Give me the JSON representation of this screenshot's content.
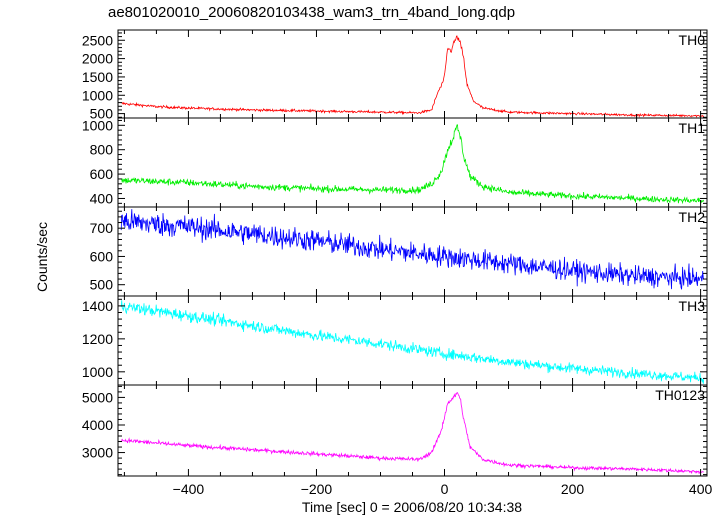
{
  "title": "ae801020010_20060820103438_wam3_trn_4band_long.qdp",
  "chart_data": {
    "type": "line",
    "title": "ae801020010_20060820103438_wam3_trn_4band_long.qdp",
    "xlabel": "Time [sec] 0 = 2006/08/20 10:34:38",
    "ylabel": "Counts/sec",
    "xlim": [
      -510,
      410
    ],
    "x_ticks": [
      -400,
      -200,
      0,
      200,
      400
    ],
    "x_tick_labels": [
      "−400",
      "−200",
      "0",
      "200",
      "400"
    ],
    "grid": false,
    "series": [
      {
        "name": "TH0",
        "color": "#ff0000",
        "ylim": [
          380,
          2780
        ],
        "y_ticks": [
          500,
          1000,
          1500,
          2000,
          2500
        ],
        "y_tick_labels": [
          "500",
          "1000",
          "1500",
          "2000",
          "2500"
        ],
        "noise": 35,
        "points": [
          [
            -505,
            780
          ],
          [
            -450,
            690
          ],
          [
            -400,
            650
          ],
          [
            -300,
            600
          ],
          [
            -200,
            570
          ],
          [
            -100,
            540
          ],
          [
            -40,
            520
          ],
          [
            -20,
            600
          ],
          [
            -10,
            1100
          ],
          [
            -5,
            1250
          ],
          [
            0,
            1500
          ],
          [
            5,
            2300
          ],
          [
            10,
            2200
          ],
          [
            15,
            2450
          ],
          [
            20,
            2600
          ],
          [
            25,
            2400
          ],
          [
            30,
            2000
          ],
          [
            35,
            1300
          ],
          [
            45,
            850
          ],
          [
            60,
            650
          ],
          [
            100,
            540
          ],
          [
            200,
            500
          ],
          [
            300,
            460
          ],
          [
            405,
            440
          ]
        ]
      },
      {
        "name": "TH1",
        "color": "#00ee00",
        "ylim": [
          330,
          1060
        ],
        "y_ticks": [
          400,
          600,
          800,
          1000
        ],
        "y_tick_labels": [
          "400",
          "600",
          "800",
          "1000"
        ],
        "noise": 28,
        "points": [
          [
            -505,
            550
          ],
          [
            -400,
            530
          ],
          [
            -300,
            500
          ],
          [
            -200,
            480
          ],
          [
            -100,
            470
          ],
          [
            -40,
            470
          ],
          [
            -20,
            520
          ],
          [
            -5,
            620
          ],
          [
            5,
            800
          ],
          [
            15,
            920
          ],
          [
            20,
            990
          ],
          [
            25,
            900
          ],
          [
            30,
            750
          ],
          [
            40,
            580
          ],
          [
            60,
            500
          ],
          [
            100,
            450
          ],
          [
            200,
            420
          ],
          [
            300,
            400
          ],
          [
            405,
            380
          ]
        ]
      },
      {
        "name": "TH2",
        "color": "#0000ff",
        "ylim": [
          460,
          775
        ],
        "y_ticks": [
          500,
          600,
          700
        ],
        "y_tick_labels": [
          "500",
          "600",
          "700"
        ],
        "noise": 40,
        "points": [
          [
            -505,
            725
          ],
          [
            -400,
            705
          ],
          [
            -300,
            680
          ],
          [
            -200,
            655
          ],
          [
            -100,
            625
          ],
          [
            0,
            600
          ],
          [
            100,
            575
          ],
          [
            200,
            550
          ],
          [
            300,
            530
          ],
          [
            405,
            520
          ]
        ]
      },
      {
        "name": "TH3",
        "color": "#00ffff",
        "ylim": [
          920,
          1460
        ],
        "y_ticks": [
          1000,
          1200,
          1400
        ],
        "y_tick_labels": [
          "1000",
          "1200",
          "1400"
        ],
        "noise": 35,
        "points": [
          [
            -505,
            1400
          ],
          [
            -400,
            1340
          ],
          [
            -300,
            1280
          ],
          [
            -200,
            1220
          ],
          [
            -100,
            1170
          ],
          [
            0,
            1110
          ],
          [
            100,
            1060
          ],
          [
            200,
            1020
          ],
          [
            300,
            990
          ],
          [
            405,
            960
          ]
        ]
      },
      {
        "name": "TH0123",
        "color": "#ff00ff",
        "ylim": [
          2150,
          5450
        ],
        "y_ticks": [
          3000,
          4000,
          5000
        ],
        "y_tick_labels": [
          "3000",
          "4000",
          "5000"
        ],
        "noise": 70,
        "points": [
          [
            -505,
            3450
          ],
          [
            -400,
            3250
          ],
          [
            -300,
            3100
          ],
          [
            -200,
            2950
          ],
          [
            -100,
            2800
          ],
          [
            -40,
            2750
          ],
          [
            -20,
            3000
          ],
          [
            -5,
            3800
          ],
          [
            5,
            4800
          ],
          [
            15,
            5000
          ],
          [
            20,
            5200
          ],
          [
            25,
            4900
          ],
          [
            30,
            4200
          ],
          [
            40,
            3200
          ],
          [
            60,
            2750
          ],
          [
            100,
            2550
          ],
          [
            200,
            2450
          ],
          [
            300,
            2400
          ],
          [
            405,
            2300
          ]
        ]
      }
    ]
  }
}
